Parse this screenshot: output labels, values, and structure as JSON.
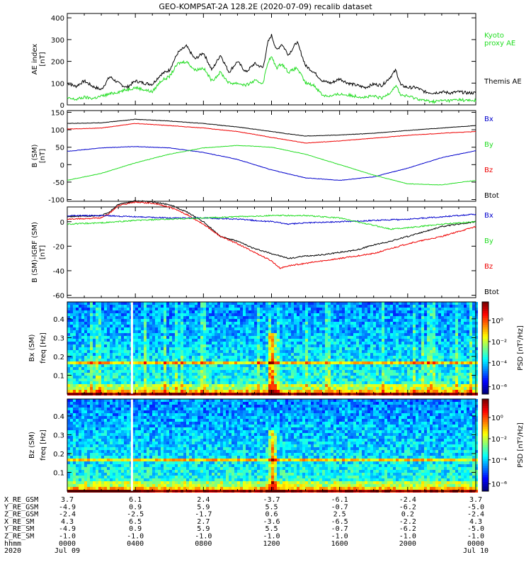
{
  "title": "GEO-KOMPSAT-2A 128.2E (2020-07-09) recalib dataset",
  "colors": {
    "black": "#000000",
    "green": "#22dd22",
    "blue": "#0000cc",
    "red": "#ee0000"
  },
  "chart_data": [
    {
      "type": "line",
      "id": "ae",
      "ylabel": [
        "AE index",
        "[nT]"
      ],
      "ylim": [
        0,
        420
      ],
      "yticks": [
        "0",
        "100",
        "200",
        "300",
        "400"
      ],
      "x_hours": [
        0,
        24
      ],
      "legend": [
        {
          "label": "Kyoto",
          "color": "green"
        },
        {
          "label": "proxy AE",
          "color": "green"
        },
        {
          "label": "Themis AE",
          "color": "black"
        }
      ],
      "series": [
        {
          "name": "Themis AE",
          "color": "black",
          "x": [
            0,
            0.5,
            1,
            1.5,
            2,
            2.5,
            3,
            3.5,
            4,
            4.5,
            5,
            5.5,
            6,
            6.5,
            7,
            7.5,
            8,
            8.5,
            9,
            9.5,
            10,
            10.5,
            11,
            11.5,
            11.8,
            12,
            12.3,
            12.6,
            13,
            13.5,
            14,
            14.5,
            15,
            15.5,
            16,
            16.5,
            17,
            17.5,
            18,
            18.5,
            19,
            19.3,
            19.6,
            20,
            20.5,
            21,
            21.5,
            22,
            22.5,
            23,
            23.5,
            24
          ],
          "y": [
            100,
            85,
            110,
            85,
            70,
            130,
            100,
            80,
            110,
            100,
            95,
            140,
            160,
            240,
            270,
            210,
            240,
            160,
            230,
            150,
            200,
            150,
            190,
            170,
            290,
            320,
            250,
            280,
            230,
            290,
            180,
            150,
            110,
            100,
            120,
            100,
            90,
            80,
            95,
            90,
            130,
            160,
            90,
            80,
            80,
            60,
            55,
            60,
            55,
            60,
            55,
            55
          ]
        },
        {
          "name": "Kyoto proxy AE",
          "color": "green",
          "x": [
            0,
            0.5,
            1,
            1.5,
            2,
            2.5,
            3,
            3.5,
            4,
            4.5,
            5,
            5.5,
            6,
            6.5,
            7,
            7.5,
            8,
            8.5,
            9,
            9.5,
            10,
            10.5,
            11,
            11.5,
            11.8,
            12,
            12.3,
            12.6,
            13,
            13.5,
            14,
            14.5,
            15,
            15.5,
            16,
            16.5,
            17,
            17.5,
            18,
            18.5,
            19,
            19.3,
            19.6,
            20,
            20.5,
            21,
            21.5,
            22,
            22.5,
            23,
            23.5,
            24
          ],
          "y": [
            30,
            25,
            35,
            30,
            40,
            50,
            60,
            70,
            80,
            70,
            60,
            110,
            130,
            190,
            200,
            160,
            170,
            110,
            150,
            100,
            100,
            90,
            110,
            100,
            200,
            220,
            170,
            190,
            150,
            170,
            100,
            90,
            45,
            40,
            50,
            45,
            40,
            35,
            40,
            30,
            60,
            90,
            45,
            40,
            30,
            20,
            15,
            20,
            20,
            25,
            20,
            20
          ]
        }
      ]
    },
    {
      "type": "line",
      "id": "bsm",
      "ylabel": [
        "B (SM)",
        "[nT]"
      ],
      "ylim": [
        -105,
        155
      ],
      "yticks": [
        "-100",
        "-50",
        "0",
        "50",
        "100",
        "150"
      ],
      "x_hours": [
        0,
        24
      ],
      "legend": [
        {
          "label": "Bx",
          "color": "blue"
        },
        {
          "label": "By",
          "color": "green"
        },
        {
          "label": "Bz",
          "color": "red"
        },
        {
          "label": "Btot",
          "color": "black"
        }
      ],
      "series": [
        {
          "name": "Btot",
          "color": "black",
          "x": [
            0,
            2,
            4,
            6,
            8,
            10,
            12,
            13,
            14,
            16,
            18,
            20,
            22,
            24
          ],
          "y": [
            118,
            120,
            130,
            125,
            118,
            108,
            95,
            88,
            82,
            85,
            90,
            98,
            105,
            112
          ]
        },
        {
          "name": "Bz",
          "color": "red",
          "x": [
            0,
            2,
            4,
            6,
            8,
            10,
            12,
            13,
            14,
            16,
            18,
            20,
            22,
            24
          ],
          "y": [
            102,
            105,
            118,
            112,
            105,
            95,
            78,
            70,
            62,
            68,
            76,
            84,
            90,
            95
          ]
        },
        {
          "name": "Bx",
          "color": "blue",
          "x": [
            0,
            2,
            4,
            6,
            8,
            10,
            12,
            14,
            16,
            18,
            20,
            22,
            24
          ],
          "y": [
            38,
            48,
            52,
            48,
            35,
            15,
            -15,
            -38,
            -45,
            -35,
            -10,
            20,
            40
          ]
        },
        {
          "name": "By",
          "color": "green",
          "x": [
            0,
            2,
            4,
            6,
            8,
            10,
            12,
            14,
            16,
            18,
            20,
            22,
            24
          ],
          "y": [
            -45,
            -25,
            5,
            30,
            48,
            55,
            50,
            30,
            0,
            -30,
            -55,
            -58,
            -45
          ]
        }
      ]
    },
    {
      "type": "line",
      "id": "dbsm",
      "ylabel": [
        "B (SM)-IGRF (SM)",
        "[nT]"
      ],
      "ylim": [
        -62,
        12
      ],
      "yticks": [
        "-60",
        "-40",
        "-20",
        "0"
      ],
      "x_hours": [
        0,
        24
      ],
      "legend": [
        {
          "label": "Bx",
          "color": "blue"
        },
        {
          "label": "By",
          "color": "green"
        },
        {
          "label": "Bz",
          "color": "red"
        },
        {
          "label": "Btot",
          "color": "black"
        }
      ],
      "series": [
        {
          "name": "Btot",
          "color": "black",
          "x": [
            0,
            2,
            2.5,
            3,
            4,
            5,
            6,
            7,
            8,
            9,
            10,
            11,
            12,
            13,
            14,
            15,
            16,
            17,
            18,
            19,
            20,
            21,
            22,
            23,
            24
          ],
          "y": [
            4,
            5,
            8,
            14,
            17,
            16,
            14,
            8,
            0,
            -12,
            -16,
            -22,
            -26,
            -30,
            -28,
            -27,
            -25,
            -23,
            -19,
            -16,
            -12,
            -8,
            -4,
            -2,
            0
          ]
        },
        {
          "name": "Bz",
          "color": "red",
          "x": [
            0,
            2,
            2.5,
            3,
            4,
            5,
            6,
            7,
            8,
            9,
            10,
            11,
            12,
            12.5,
            13,
            14,
            15,
            16,
            17,
            18,
            19,
            20,
            21,
            22,
            23,
            24
          ],
          "y": [
            2,
            3,
            7,
            13,
            16,
            15,
            12,
            6,
            -2,
            -12,
            -18,
            -25,
            -32,
            -38,
            -36,
            -34,
            -32,
            -30,
            -28,
            -26,
            -22,
            -18,
            -15,
            -12,
            -8,
            -4
          ]
        },
        {
          "name": "Bx",
          "color": "blue",
          "x": [
            0,
            2,
            4,
            6,
            8,
            10,
            12,
            13,
            14,
            16,
            18,
            20,
            22,
            24
          ],
          "y": [
            5,
            5,
            4,
            3,
            3,
            2,
            0,
            -2,
            -1,
            0,
            1,
            2,
            4,
            6
          ]
        },
        {
          "name": "By",
          "color": "green",
          "x": [
            0,
            2,
            4,
            6,
            8,
            10,
            12,
            14,
            16,
            17,
            18,
            19,
            20,
            22,
            24
          ],
          "y": [
            -2,
            -1,
            1,
            2,
            3,
            4,
            5,
            5,
            3,
            0,
            -3,
            -6,
            -5,
            -2,
            0
          ]
        }
      ]
    },
    {
      "type": "heatmap",
      "id": "spec_bx",
      "ylabel": [
        "Bx (SM)",
        "freq [Hz]"
      ],
      "ylim": [
        0.0,
        0.49
      ],
      "yticks": [
        "0.1",
        "0.2",
        "0.3",
        "0.4"
      ],
      "colorbar": {
        "label": "PSD [nT²/Hz]",
        "ticks": [
          "10⁰",
          "10⁻²",
          "10⁻⁴",
          "10⁻⁶"
        ]
      },
      "features": {
        "data_gap_hour": 3.8,
        "event_hour": 12.0,
        "spectral_line_hz": 0.17
      }
    },
    {
      "type": "heatmap",
      "id": "spec_bz",
      "ylabel": [
        "Bz (SM)",
        "freq [Hz]"
      ],
      "ylim": [
        0.0,
        0.49
      ],
      "yticks": [
        "0.1",
        "0.2",
        "0.3",
        "0.4"
      ],
      "colorbar": {
        "label": "PSD [nT²/Hz]",
        "ticks": [
          "10⁰",
          "10⁻²",
          "10⁻⁴",
          "10⁻⁶"
        ]
      },
      "features": {
        "data_gap_hour": 3.8,
        "event_hour": 12.0,
        "spectral_line_hz": 0.17
      }
    }
  ],
  "ephemeris": {
    "labels": [
      "X_RE_GSM",
      "Y_RE_GSM",
      "Z_RE_GSM",
      "X_RE_SM",
      "Y_RE_SM",
      "Z_RE_SM",
      "hhmm",
      "2020"
    ],
    "columns": [
      [
        "3.7",
        "-4.9",
        "-2.4",
        "4.3",
        "-4.9",
        "-1.0",
        "0000",
        "Jul 09"
      ],
      [
        "6.1",
        "0.9",
        "-2.5",
        "6.5",
        "0.9",
        "-1.0",
        "0400",
        ""
      ],
      [
        "2.4",
        "5.9",
        "-1.7",
        "2.7",
        "5.9",
        "-1.0",
        "0800",
        ""
      ],
      [
        "-3.7",
        "5.5",
        "0.6",
        "-3.6",
        "5.5",
        "-1.0",
        "1200",
        ""
      ],
      [
        "-6.1",
        "-0.7",
        "2.5",
        "-6.5",
        "-0.7",
        "-1.0",
        "1600",
        ""
      ],
      [
        "-2.4",
        "-6.2",
        "0.2",
        "-2.2",
        "-6.2",
        "-1.0",
        "2000",
        ""
      ],
      [
        "3.7",
        "-5.0",
        "-2.4",
        "4.3",
        "-5.0",
        "-1.0",
        "0000",
        "Jul 10"
      ]
    ]
  }
}
